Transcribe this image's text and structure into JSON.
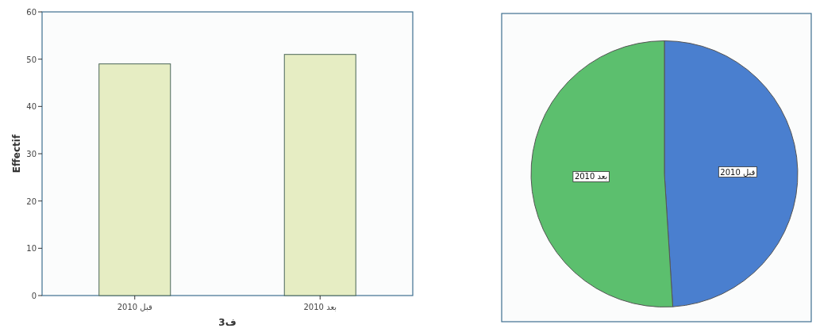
{
  "chart_data": [
    {
      "type": "bar",
      "categories": [
        "قبل 2010",
        "بعد 2010"
      ],
      "values": [
        49,
        51
      ],
      "color": "#e6edc3",
      "xlabel": "ف3",
      "ylabel": "Effectif",
      "ylim": [
        0,
        60
      ],
      "yticks": [
        0,
        10,
        20,
        30,
        40,
        50,
        60
      ]
    },
    {
      "type": "pie",
      "categories": [
        "قبل 2010",
        "بعد 2010"
      ],
      "values": [
        49,
        51
      ],
      "colors": [
        "#4a7fcf",
        "#5cbf6e"
      ]
    }
  ]
}
